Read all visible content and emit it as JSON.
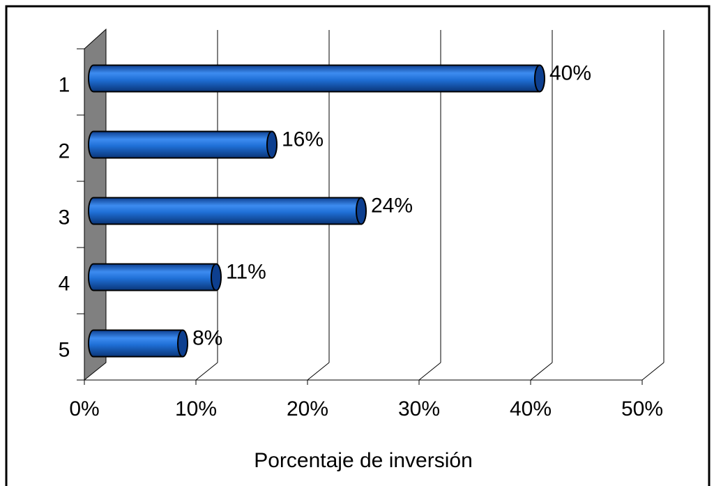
{
  "chart_data": {
    "type": "bar",
    "orientation": "horizontal",
    "x_label": "Porcentaje de inversión",
    "categories": [
      "1",
      "2",
      "3",
      "4",
      "5"
    ],
    "values": [
      40,
      16,
      24,
      11,
      8
    ],
    "value_labels": [
      "40%",
      "16%",
      "24%",
      "11%",
      "8%"
    ],
    "color": "#1f6fd6",
    "xlim": [
      0,
      50
    ],
    "xticks": [
      {
        "value": 0,
        "label": "0%"
      },
      {
        "value": 10,
        "label": "10%"
      },
      {
        "value": 20,
        "label": "20%"
      },
      {
        "value": 30,
        "label": "30%"
      },
      {
        "value": 40,
        "label": "40%"
      },
      {
        "value": 50,
        "label": "50%"
      }
    ],
    "grid": true
  }
}
